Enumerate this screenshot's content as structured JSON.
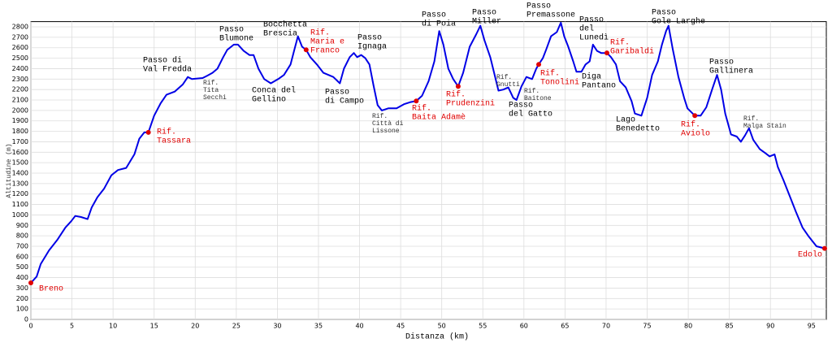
{
  "chart_data": {
    "type": "line",
    "xlabel": "Distanza (km)",
    "ylabel": "Altitudine (m)",
    "color": "#0000e6",
    "grid": true,
    "xlim": [
      0,
      96.8
    ],
    "ylim": [
      0,
      2850
    ],
    "xticks": [
      0,
      5,
      10,
      15,
      20,
      25,
      30,
      35,
      40,
      45,
      50,
      55,
      60,
      65,
      70,
      75,
      80,
      85,
      90,
      95
    ],
    "yticks": [
      0,
      100,
      200,
      300,
      400,
      500,
      600,
      700,
      800,
      900,
      1000,
      1100,
      1200,
      1300,
      1400,
      1500,
      1600,
      1700,
      1800,
      1900,
      2000,
      2100,
      2200,
      2300,
      2400,
      2500,
      2600,
      2700,
      2800
    ],
    "x": [
      0,
      0.7,
      1.2,
      2.2,
      3.2,
      4.2,
      4.9,
      5.4,
      6.1,
      6.9,
      7.4,
      8.1,
      8.9,
      9.8,
      10.6,
      11.6,
      12.6,
      13.2,
      13.8,
      14.3,
      15.0,
      15.8,
      16.5,
      17.5,
      18.5,
      19.1,
      19.6,
      20.9,
      21.4,
      22.1,
      22.7,
      23.4,
      23.9,
      24.7,
      25.2,
      25.9,
      26.6,
      27.1,
      27.7,
      28.4,
      29.2,
      30.1,
      30.8,
      31.6,
      32.1,
      32.5,
      33.0,
      33.5,
      34.0,
      34.8,
      35.6,
      36.8,
      37.6,
      38.1,
      38.8,
      39.3,
      39.7,
      40.2,
      40.7,
      41.2,
      41.7,
      42.2,
      42.7,
      43.5,
      44.5,
      45.4,
      46.2,
      46.9,
      47.6,
      48.4,
      49.1,
      49.7,
      50.2,
      50.8,
      51.4,
      52.0,
      52.6,
      53.4,
      54.2,
      54.7,
      55.2,
      55.9,
      56.5,
      56.9,
      57.5,
      58.1,
      58.7,
      59.1,
      59.7,
      60.3,
      61.0,
      61.5,
      61.8,
      62.3,
      62.7,
      63.3,
      64.0,
      64.5,
      64.9,
      65.4,
      66.0,
      66.4,
      67.0,
      67.5,
      68.0,
      68.4,
      68.9,
      69.4,
      70.1,
      70.6,
      71.2,
      71.7,
      72.4,
      73.1,
      73.5,
      74.3,
      75.0,
      75.6,
      76.3,
      76.8,
      77.3,
      77.6,
      78.1,
      78.8,
      79.5,
      79.9,
      80.8,
      81.5,
      82.2,
      82.9,
      83.5,
      84.0,
      84.5,
      85.2,
      85.9,
      86.4,
      86.9,
      87.4,
      87.9,
      88.7,
      89.4,
      89.9,
      90.5,
      90.9,
      91.6,
      92.3,
      93.1,
      93.9,
      94.6,
      95.6,
      96.6
    ],
    "values": [
      350,
      410,
      530,
      660,
      760,
      880,
      940,
      990,
      980,
      960,
      1070,
      1170,
      1250,
      1380,
      1430,
      1450,
      1580,
      1730,
      1790,
      1790,
      1950,
      2070,
      2150,
      2180,
      2250,
      2320,
      2300,
      2310,
      2330,
      2360,
      2400,
      2510,
      2580,
      2630,
      2630,
      2570,
      2530,
      2530,
      2400,
      2300,
      2260,
      2300,
      2340,
      2440,
      2590,
      2710,
      2610,
      2580,
      2510,
      2440,
      2360,
      2320,
      2260,
      2400,
      2510,
      2550,
      2510,
      2530,
      2500,
      2440,
      2240,
      2050,
      2000,
      2020,
      2020,
      2060,
      2080,
      2090,
      2140,
      2280,
      2470,
      2760,
      2630,
      2400,
      2300,
      2230,
      2360,
      2610,
      2730,
      2810,
      2670,
      2510,
      2320,
      2190,
      2200,
      2220,
      2120,
      2100,
      2230,
      2320,
      2300,
      2400,
      2440,
      2500,
      2580,
      2710,
      2750,
      2840,
      2710,
      2610,
      2470,
      2370,
      2370,
      2440,
      2470,
      2630,
      2570,
      2550,
      2550,
      2510,
      2440,
      2280,
      2220,
      2090,
      1970,
      1950,
      2120,
      2340,
      2470,
      2630,
      2760,
      2810,
      2590,
      2320,
      2120,
      2020,
      1950,
      1950,
      2030,
      2200,
      2340,
      2200,
      1970,
      1770,
      1750,
      1700,
      1760,
      1830,
      1720,
      1630,
      1590,
      1560,
      1580,
      1460,
      1330,
      1190,
      1030,
      880,
      800,
      700,
      680
    ],
    "waypoints": [
      {
        "label": [
          "Breno"
        ],
        "x": 0,
        "y": 350
      },
      {
        "label": [
          "Rif.",
          "Tassara"
        ],
        "x": 14.3,
        "y": 1790
      },
      {
        "label": [
          "Rif.",
          "Maria e",
          "Franco"
        ],
        "x": 33.5,
        "y": 2580
      },
      {
        "label": [
          "Rif.",
          "Baita Adamè"
        ],
        "x": 46.9,
        "y": 2090
      },
      {
        "label": [
          "Rif.",
          "Prudenzini"
        ],
        "x": 52.0,
        "y": 2230
      },
      {
        "label": [
          "Rif.",
          "Tonolini"
        ],
        "x": 61.8,
        "y": 2440
      },
      {
        "label": [
          "Rif.",
          "Garibaldi"
        ],
        "x": 70.1,
        "y": 2550
      },
      {
        "label": [
          "Rif.",
          "Aviolo"
        ],
        "x": 80.8,
        "y": 1950
      },
      {
        "label": [
          "Edolo"
        ],
        "x": 96.6,
        "y": 680
      }
    ],
    "waypoint_color": "#e00000",
    "passes": [
      [
        "Passo di",
        "Val Fredda"
      ],
      [
        "Passo",
        "Blumone"
      ],
      [
        "Conca del",
        "Gellino"
      ],
      [
        "Bocchetta",
        "Brescia"
      ],
      [
        "Passo",
        "Ignaga"
      ],
      [
        "Passo",
        "di Campo"
      ],
      [
        "Passo",
        "di Poia"
      ],
      [
        "Passo",
        "Miller"
      ],
      [
        "Passo",
        "del Gatto"
      ],
      [
        "Passo",
        "Premassone"
      ],
      [
        "Passo",
        "del",
        "Lunedì"
      ],
      [
        "Diga",
        "Pantano"
      ],
      [
        "Lago",
        "Benedetto"
      ],
      [
        "Passo",
        "Gole Larghe"
      ],
      [
        "Passo",
        "Gallinera"
      ]
    ],
    "notes": [
      [
        "Rif.",
        "Tita",
        "Secchi"
      ],
      [
        "Rif.",
        "Città di",
        "Lissone"
      ],
      [
        "Rif.",
        "Gnutti"
      ],
      [
        "Rif.",
        "Baitone"
      ],
      [
        "Rif.",
        "Malga Stain"
      ]
    ]
  }
}
